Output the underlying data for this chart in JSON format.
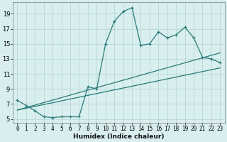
{
  "xlabel": "Humidex (Indice chaleur)",
  "bg_color": "#d9eeee",
  "grid_color": "#b8d8d8",
  "line_color": "#2a7a7a",
  "xlim": [
    -0.5,
    23.5
  ],
  "ylim": [
    4.5,
    20.5
  ],
  "yticks": [
    5,
    7,
    9,
    11,
    13,
    15,
    17,
    19
  ],
  "xticks": [
    0,
    1,
    2,
    3,
    4,
    5,
    6,
    7,
    8,
    9,
    10,
    11,
    12,
    13,
    14,
    15,
    16,
    17,
    18,
    19,
    20,
    21,
    22,
    23
  ],
  "series1_x": [
    0,
    1,
    2,
    3,
    4,
    5,
    6,
    7,
    8,
    9,
    10,
    11,
    12,
    13,
    14,
    15,
    16,
    17,
    18,
    19,
    20,
    21,
    22,
    23
  ],
  "series1_y": [
    7.5,
    6.8,
    6.1,
    5.3,
    5.2,
    5.3,
    5.3,
    5.3,
    9.3,
    9.0,
    15.0,
    18.0,
    19.3,
    19.8,
    14.8,
    15.0,
    16.6,
    15.8,
    16.2,
    17.2,
    15.8,
    13.2,
    13.0,
    12.5
  ],
  "series2_x": [
    0,
    23
  ],
  "series2_y": [
    6.2,
    11.8
  ],
  "series3_x": [
    0,
    23
  ],
  "series3_y": [
    6.2,
    13.8
  ]
}
